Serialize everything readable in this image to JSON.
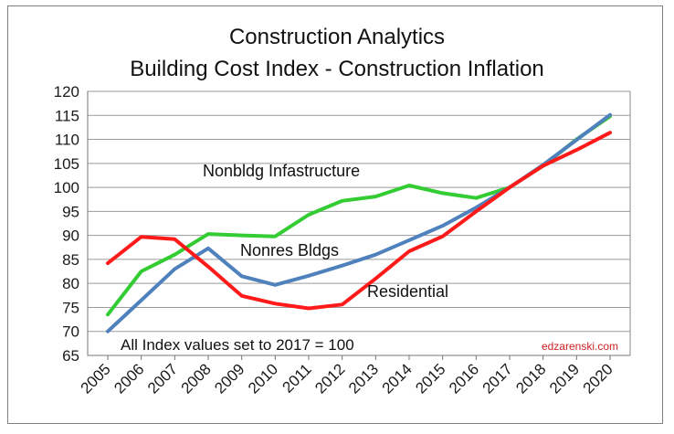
{
  "chart_data": {
    "type": "line",
    "title": [
      "Construction Analytics",
      "Building Cost Index  - Construction Inflation"
    ],
    "categories": [
      "2005",
      "2006",
      "2007",
      "2008",
      "2009",
      "2010",
      "2011",
      "2012",
      "2013",
      "2014",
      "2015",
      "2016",
      "2017",
      "2018",
      "2019",
      "2020"
    ],
    "ylim": [
      65,
      120
    ],
    "yticks": [
      65,
      70,
      75,
      80,
      85,
      90,
      95,
      100,
      105,
      110,
      115,
      120
    ],
    "grid": "horizontal",
    "legend": "none",
    "series": [
      {
        "name": "Nonbldg Infastructure",
        "color": "#33cc33",
        "values": [
          73.5,
          82.5,
          86.0,
          90.3,
          90.0,
          89.8,
          94.3,
          97.2,
          98.1,
          100.4,
          98.8,
          97.8,
          100.0,
          104.5,
          110.0,
          114.8
        ]
      },
      {
        "name": "Nonres Bldgs",
        "color": "#4f81bd",
        "values": [
          70.0,
          76.5,
          83.0,
          87.3,
          81.5,
          79.7,
          81.6,
          83.7,
          86.0,
          89.0,
          92.0,
          95.8,
          100.0,
          104.7,
          109.9,
          115.1
        ]
      },
      {
        "name": "Residential",
        "color": "#ff1a1a",
        "values": [
          84.2,
          89.7,
          89.2,
          83.5,
          77.4,
          75.8,
          74.8,
          75.6,
          81.0,
          86.7,
          89.8,
          95.0,
          100.0,
          104.5,
          107.8,
          111.4
        ]
      }
    ],
    "annotations": {
      "note": "All Index values set to 2017 = 100",
      "credit": "edzarenski.com"
    }
  }
}
